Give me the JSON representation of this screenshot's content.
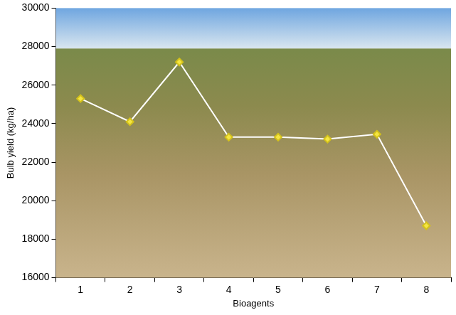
{
  "chart_data": {
    "type": "line",
    "x_label": "Bioagents",
    "y_label": "Bulb yield (kg/ha)",
    "categories": [
      "1",
      "2",
      "3",
      "4",
      "5",
      "6",
      "7",
      "8"
    ],
    "values": [
      25300,
      24100,
      27200,
      23300,
      23300,
      23200,
      23450,
      18700
    ],
    "color": "#ffffff",
    "marker": "diamond",
    "ylim": [
      16000,
      30000
    ],
    "yticks": [
      16000,
      18000,
      20000,
      22000,
      24000,
      26000,
      28000,
      30000
    ],
    "grid": false
  }
}
